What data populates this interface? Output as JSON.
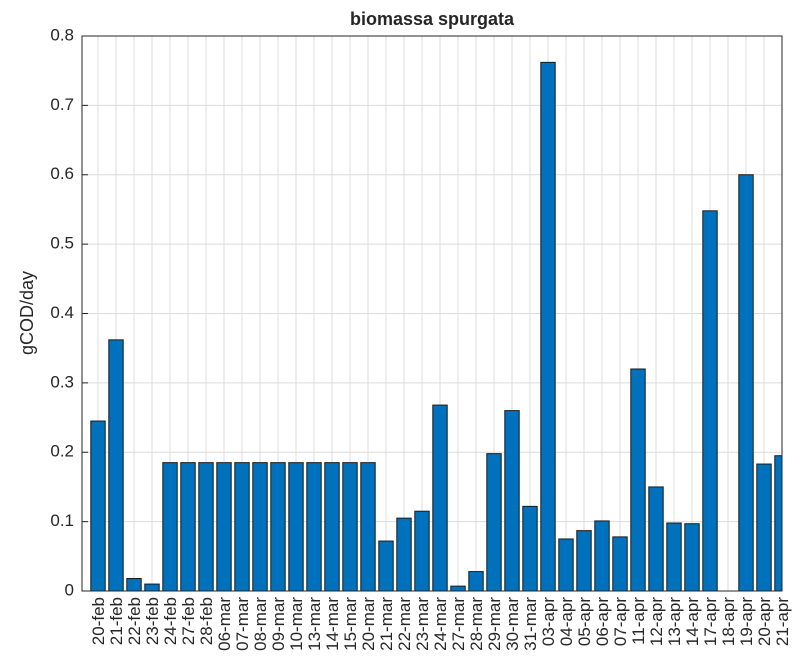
{
  "chart_data": {
    "type": "bar",
    "title": "biomassa spurgata",
    "ylabel": "gCOD/day",
    "categories": [
      "20-feb",
      "21-feb",
      "22-feb",
      "23-feb",
      "24-feb",
      "27-feb",
      "28-feb",
      "06-mar",
      "07-mar",
      "08-mar",
      "09-mar",
      "10-mar",
      "13-mar",
      "14-mar",
      "15-mar",
      "20-mar",
      "21-mar",
      "22-mar",
      "23-mar",
      "24-mar",
      "27-mar",
      "28-mar",
      "29-mar",
      "30-mar",
      "31-mar",
      "03-apr",
      "04-apr",
      "05-apr",
      "06-apr",
      "07-apr",
      "11-apr",
      "12-apr",
      "13-apr",
      "14-apr",
      "17-apr",
      "18-apr",
      "19-apr",
      "20-apr",
      "21-apr"
    ],
    "values": [
      0.245,
      0.362,
      0.018,
      0.01,
      0.185,
      0.185,
      0.185,
      0.185,
      0.185,
      0.185,
      0.185,
      0.185,
      0.185,
      0.185,
      0.185,
      0.185,
      0.072,
      0.105,
      0.115,
      0.268,
      0.007,
      0.028,
      0.198,
      0.26,
      0.122,
      0.762,
      0.075,
      0.087,
      0.101,
      0.078,
      0.32,
      0.15,
      0.098,
      0.097,
      0.548,
      0,
      0.6,
      0.183,
      0.195
    ],
    "color": "#0072bd",
    "ylim": [
      0,
      0.8
    ],
    "yticks": [
      0,
      0.1,
      0.2,
      0.3,
      0.4,
      0.5,
      0.6,
      0.7,
      0.8
    ],
    "grid": true
  }
}
